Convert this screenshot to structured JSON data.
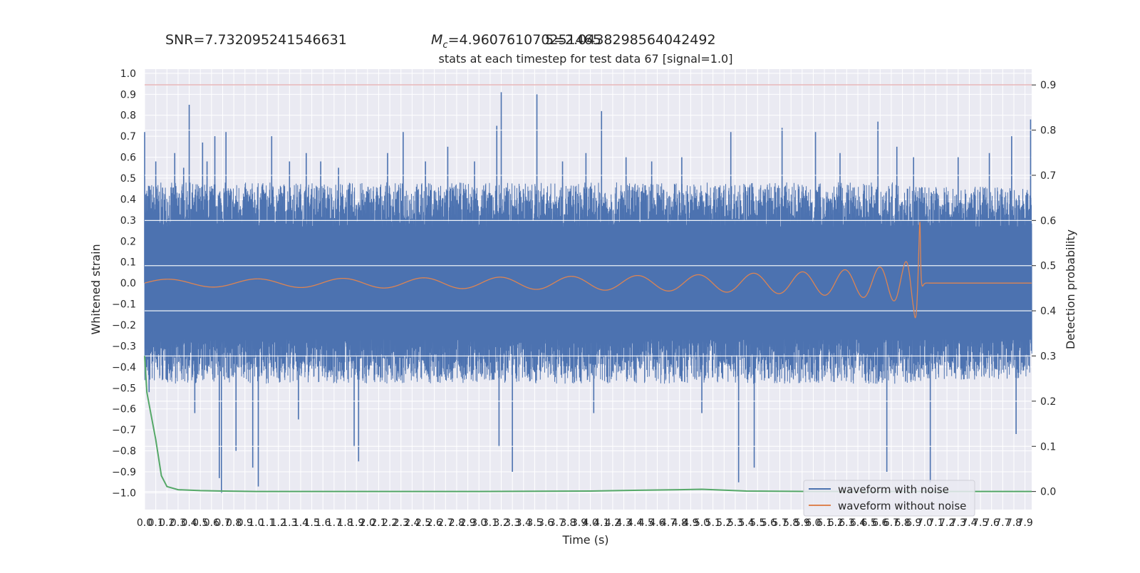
{
  "header": {
    "snr_text": "SNR=7.732095241546631",
    "mc_symbol": "M",
    "mc_subscript": "c",
    "mc_value": "=4.960761070251465",
    "overlap_text": "5=2.0438298564042492",
    "subtitle": "stats at each timestep for test data 67 [signal=1.0]"
  },
  "colors": {
    "noise_waveform": "#4c72b0",
    "clean_waveform": "#dd8452",
    "detection_prob": "#55a868",
    "threshold_line": "#c44e52",
    "plot_background": "#eaeaf2",
    "grid": "#ffffff"
  },
  "chart_data": {
    "type": "line",
    "xlabel": "Time (s)",
    "ylabel": "Whitened strain",
    "ylabel_right": "Detection probability",
    "xlim": [
      0.0,
      7.96
    ],
    "ylim": [
      -1.08,
      1.02
    ],
    "ylim_right": [
      -0.04,
      0.935
    ],
    "x_ticks": [
      0.0,
      0.1,
      0.2,
      0.3,
      0.4,
      0.5,
      0.6,
      0.7,
      0.8,
      0.9,
      1.0,
      1.1,
      1.2,
      1.3,
      1.4,
      1.5,
      1.6,
      1.7,
      1.8,
      1.9,
      2.0,
      2.1,
      2.2,
      2.3,
      2.4,
      2.5,
      2.6,
      2.7,
      2.8,
      2.9,
      3.0,
      3.1,
      3.2,
      3.3,
      3.4,
      3.5,
      3.6,
      3.7,
      3.8,
      3.9,
      4.0,
      4.1,
      4.2,
      4.3,
      4.4,
      4.5,
      4.6,
      4.7,
      4.8,
      4.9,
      5.0,
      5.1,
      5.2,
      5.3,
      5.4,
      5.5,
      5.6,
      5.7,
      5.8,
      5.9,
      6.0,
      6.1,
      6.2,
      6.3,
      6.4,
      6.5,
      6.6,
      6.7,
      6.8,
      6.9,
      7.0,
      7.1,
      7.2,
      7.3,
      7.4,
      7.5,
      7.6,
      7.7,
      7.8,
      7.9
    ],
    "x_tick_labels": [
      "0.0",
      "0.1",
      "0.2",
      "0.3",
      "0.4",
      "0.5",
      "0.6",
      "0.7",
      "0.8",
      "0.9",
      "1.0",
      "1.1",
      "1.2",
      "1.3",
      "1.4",
      "1.5",
      "1.6",
      "1.7",
      "1.8",
      "1.9",
      "2.0",
      "2.1",
      "2.2",
      "2.3",
      "2.4",
      "2.5",
      "2.6",
      "2.7",
      "2.8",
      "2.9",
      "3.0",
      "3.1",
      "3.2",
      "3.3",
      "3.4",
      "3.5",
      "3.6",
      "3.7",
      "3.8",
      "3.9",
      "4.0",
      "4.1",
      "4.2",
      "4.3",
      "4.4",
      "4.5",
      "4.6",
      "4.7",
      "4.8",
      "4.9",
      "5.0",
      "5.1",
      "5.2",
      "5.3",
      "5.4",
      "5.5",
      "5.6",
      "5.7",
      "5.8",
      "5.9",
      "6.0",
      "6.1",
      "6.2",
      "6.3",
      "6.4",
      "6.5",
      "6.6",
      "6.7",
      "6.8",
      "6.9",
      "7.0",
      "7.1",
      "7.2",
      "7.3",
      "7.4",
      "7.5",
      "7.6",
      "7.7",
      "7.8",
      "7.9"
    ],
    "y_ticks": [
      1.0,
      0.9,
      0.8,
      0.7,
      0.6,
      0.5,
      0.4,
      0.3,
      0.2,
      0.1,
      0.0,
      -0.1,
      -0.2,
      -0.3,
      -0.4,
      -0.5,
      -0.6,
      -0.7,
      -0.8,
      -0.9,
      -1.0
    ],
    "y_tick_labels": [
      "1.0",
      "0.9",
      "0.8",
      "0.7",
      "0.6",
      "0.5",
      "0.4",
      "0.3",
      "0.2",
      "0.1",
      "0.0",
      "−0.1",
      "−0.2",
      "−0.3",
      "−0.4",
      "−0.5",
      "−0.6",
      "−0.7",
      "−0.8",
      "−0.9",
      "−1.0"
    ],
    "y_ticks_right": [
      0.9,
      0.8,
      0.7,
      0.6,
      0.5,
      0.4,
      0.3,
      0.2,
      0.1,
      0.0
    ],
    "y_tick_labels_right": [
      "0.9",
      "0.8",
      "0.7",
      "0.6",
      "0.5",
      "0.4",
      "0.3",
      "0.2",
      "0.1",
      "0.0"
    ],
    "threshold": 0.9,
    "grid": true,
    "legend_position": "lower-right",
    "series": [
      {
        "name": "waveform with noise",
        "axis": "left",
        "band_envelope": {
          "x": [
            0.0,
            2.0,
            4.0,
            5.0,
            6.0,
            6.96,
            7.0,
            7.96
          ],
          "upper": [
            0.48,
            0.48,
            0.48,
            0.48,
            0.48,
            0.48,
            0.46,
            0.46
          ],
          "lower": [
            -0.48,
            -0.48,
            -0.48,
            -0.48,
            -0.48,
            -0.48,
            -0.46,
            -0.46
          ]
        },
        "spikes": [
          {
            "x": 0.0,
            "y": 0.72
          },
          {
            "x": 0.04,
            "y": -0.52
          },
          {
            "x": 0.1,
            "y": 0.58
          },
          {
            "x": 0.27,
            "y": 0.62
          },
          {
            "x": 0.35,
            "y": 0.55
          },
          {
            "x": 0.4,
            "y": 0.85
          },
          {
            "x": 0.45,
            "y": -0.62
          },
          {
            "x": 0.52,
            "y": 0.67
          },
          {
            "x": 0.56,
            "y": 0.58
          },
          {
            "x": 0.63,
            "y": 0.7
          },
          {
            "x": 0.67,
            "y": -0.93
          },
          {
            "x": 0.69,
            "y": -1.0
          },
          {
            "x": 0.73,
            "y": 0.72
          },
          {
            "x": 0.82,
            "y": -0.8
          },
          {
            "x": 0.97,
            "y": -0.88
          },
          {
            "x": 1.02,
            "y": -0.97
          },
          {
            "x": 1.14,
            "y": 0.7
          },
          {
            "x": 1.3,
            "y": 0.58
          },
          {
            "x": 1.38,
            "y": -0.65
          },
          {
            "x": 1.45,
            "y": 0.62
          },
          {
            "x": 1.58,
            "y": 0.58
          },
          {
            "x": 1.74,
            "y": 0.55
          },
          {
            "x": 1.88,
            "y": -0.78
          },
          {
            "x": 1.92,
            "y": -0.85
          },
          {
            "x": 2.18,
            "y": 0.62
          },
          {
            "x": 2.32,
            "y": 0.72
          },
          {
            "x": 2.52,
            "y": 0.58
          },
          {
            "x": 2.72,
            "y": 0.65
          },
          {
            "x": 2.96,
            "y": 0.58
          },
          {
            "x": 3.16,
            "y": 0.75
          },
          {
            "x": 3.18,
            "y": -0.78
          },
          {
            "x": 3.2,
            "y": 0.91
          },
          {
            "x": 3.3,
            "y": -0.9
          },
          {
            "x": 3.52,
            "y": 0.9
          },
          {
            "x": 3.75,
            "y": 0.58
          },
          {
            "x": 3.96,
            "y": 0.62
          },
          {
            "x": 4.03,
            "y": -0.62
          },
          {
            "x": 4.1,
            "y": 0.82
          },
          {
            "x": 4.32,
            "y": 0.6
          },
          {
            "x": 4.55,
            "y": 0.58
          },
          {
            "x": 4.82,
            "y": 0.6
          },
          {
            "x": 5.0,
            "y": -0.62
          },
          {
            "x": 5.26,
            "y": 0.72
          },
          {
            "x": 5.33,
            "y": -0.95
          },
          {
            "x": 5.47,
            "y": -0.88
          },
          {
            "x": 5.72,
            "y": 0.74
          },
          {
            "x": 6.02,
            "y": 0.72
          },
          {
            "x": 6.24,
            "y": 0.62
          },
          {
            "x": 6.58,
            "y": 0.77
          },
          {
            "x": 6.66,
            "y": -0.9
          },
          {
            "x": 6.75,
            "y": 0.65
          },
          {
            "x": 6.9,
            "y": 0.6
          },
          {
            "x": 7.05,
            "y": -0.95
          },
          {
            "x": 7.3,
            "y": 0.6
          },
          {
            "x": 7.58,
            "y": 0.62
          },
          {
            "x": 7.78,
            "y": 0.7
          },
          {
            "x": 7.82,
            "y": -0.72
          },
          {
            "x": 7.95,
            "y": 0.78
          }
        ]
      },
      {
        "name": "waveform without noise",
        "axis": "left",
        "chirp": {
          "x_start": 0.0,
          "x_merger": 6.96,
          "x_end": 7.96,
          "amplitude_envelope": {
            "x": [
              0.0,
              1.0,
              2.0,
              3.0,
              4.0,
              5.0,
              6.0,
              6.5,
              6.8,
              6.9,
              6.95,
              6.96,
              6.98
            ],
            "amp": [
              0.018,
              0.02,
              0.023,
              0.027,
              0.033,
              0.04,
              0.055,
              0.07,
              0.09,
              0.13,
              0.27,
              0.3,
              0.005
            ]
          },
          "frequency_hz_start": 12,
          "frequency_hz_merger": 110
        }
      },
      {
        "name": "detection probability",
        "axis": "right",
        "x": [
          0.0,
          0.02,
          0.05,
          0.1,
          0.15,
          0.2,
          0.3,
          0.5,
          0.7,
          1.0,
          2.0,
          3.0,
          4.0,
          4.5,
          4.8,
          5.0,
          5.2,
          5.4,
          6.0,
          6.5,
          7.0,
          7.5,
          7.96
        ],
        "y": [
          0.3,
          0.22,
          0.18,
          0.115,
          0.035,
          0.011,
          0.004,
          0.002,
          0.001,
          0.0,
          0.0,
          0.0,
          0.001,
          0.003,
          0.004,
          0.005,
          0.003,
          0.001,
          0.0,
          0.0,
          0.0,
          0.0,
          0.0
        ]
      }
    ]
  }
}
